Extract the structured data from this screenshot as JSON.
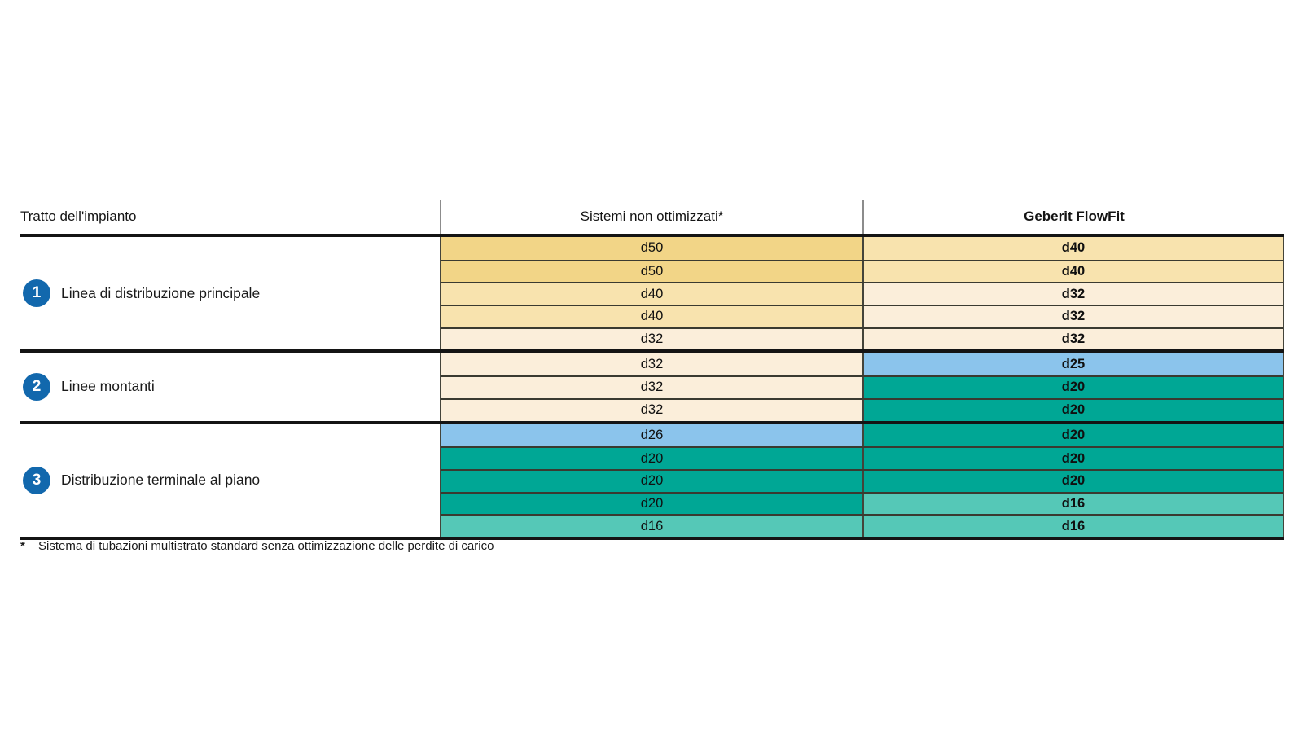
{
  "table": {
    "header": {
      "col1": "Tratto dell'impianto",
      "col2": "Sistemi non ottimizzati*",
      "col3": "Geberit FlowFit"
    },
    "sections": [
      {
        "number": "1",
        "label": "Linea di distribuzione principale",
        "rows": [
          {
            "sistemi": "d50",
            "flowfit": "d40"
          },
          {
            "sistemi": "d50",
            "flowfit": "d40"
          },
          {
            "sistemi": "d40",
            "flowfit": "d32"
          },
          {
            "sistemi": "d40",
            "flowfit": "d32"
          },
          {
            "sistemi": "d32",
            "flowfit": "d32"
          }
        ]
      },
      {
        "number": "2",
        "label": "Linee montanti",
        "rows": [
          {
            "sistemi": "d32",
            "flowfit": "d25"
          },
          {
            "sistemi": "d32",
            "flowfit": "d20"
          },
          {
            "sistemi": "d32",
            "flowfit": "d20"
          }
        ]
      },
      {
        "number": "3",
        "label": "Distribuzione terminale al piano",
        "rows": [
          {
            "sistemi": "d26",
            "flowfit": "d20"
          },
          {
            "sistemi": "d20",
            "flowfit": "d20"
          },
          {
            "sistemi": "d20",
            "flowfit": "d20"
          },
          {
            "sistemi": "d20",
            "flowfit": "d16"
          },
          {
            "sistemi": "d16",
            "flowfit": "d16"
          }
        ]
      }
    ],
    "footnote": {
      "marker": "*",
      "text": "Sistema di tubazioni multistrato standard senza ottimizzazione delle perdite di carico"
    }
  },
  "colors": {
    "d50": "#F2D587",
    "d40": "#F8E3AE",
    "d32": "#FBEEDA",
    "d26": "#8BC4EC",
    "d25": "#8BC4EC",
    "d20": "#00A795",
    "d16": "#55C8B7",
    "badge_blue": "#1268AD"
  }
}
